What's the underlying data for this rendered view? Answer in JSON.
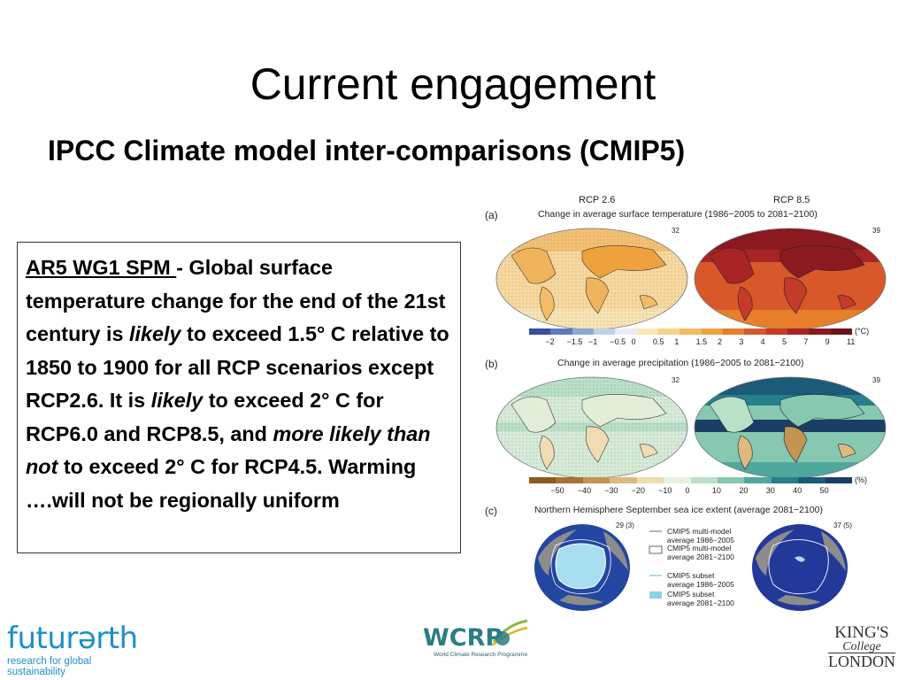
{
  "slide": {
    "title": "Current engagement",
    "subtitle": "IPCC Climate model inter-comparisons (CMIP5)"
  },
  "textbox": {
    "part1_underlined": "AR5 WG1 SPM ",
    "part2": "- Global surface temperature change for the end of the 21st century is ",
    "likely1": "likely",
    "part3": " to exceed 1.5° C relative to 1850 to 1900 for all RCP scenarios except RCP2.6. It is ",
    "likely2": "likely",
    "part4": " to exceed 2° C for RCP6.0 and RCP8.5, and ",
    "more_likely": "more likely than not",
    "part5": " to exceed 2° C for RCP4.5. Warming ….will not be regionally uniform"
  },
  "figure": {
    "col_left": "RCP 2.6",
    "col_right": "RCP 8.5",
    "panel_a": {
      "letter": "(a)",
      "title": "Change in average surface temperature (1986−2005 to 2081−2100)",
      "n_left": "32",
      "n_right": "39",
      "ticks": [
        "−2",
        "−1.5",
        "−1",
        "−0.5",
        "0",
        "0.5",
        "1",
        "1.5",
        "2",
        "3",
        "4",
        "5",
        "7",
        "9",
        "11"
      ],
      "unit": "(°C)",
      "colors": [
        "#3a4fa0",
        "#5b7cc0",
        "#89aad6",
        "#bcd3ea",
        "#e6eef6",
        "#fbe7b9",
        "#f7d389",
        "#f3bb5d",
        "#eea13d",
        "#e67e2c",
        "#d9582a",
        "#c53a28",
        "#a82424",
        "#8a1a20",
        "#6e1219"
      ]
    },
    "panel_b": {
      "letter": "(b)",
      "title": "Change in average precipitation (1986−2005 to 2081−2100)",
      "n_left": "32",
      "n_right": "39",
      "ticks": [
        "−50",
        "−40",
        "−30",
        "−20",
        "−10",
        "0",
        "10",
        "20",
        "30",
        "40",
        "50"
      ],
      "unit": "(%)",
      "colors": [
        "#8c5a1c",
        "#a87232",
        "#c39552",
        "#dcba80",
        "#efdcb2",
        "#e7f2e0",
        "#b9e0c8",
        "#86c8b0",
        "#4fa89c",
        "#267f8c",
        "#1c5a7a",
        "#1b3e66"
      ]
    },
    "panel_c": {
      "letter": "(c)",
      "title": "Northern Hemisphere September sea ice extent (average 2081−2100)",
      "n_left": "29 (3)",
      "n_right": "37 (5)",
      "legend": [
        {
          "line1": "CMIP5 multi-model",
          "line2": "average 1986−2005",
          "kind": "line",
          "color": "#666666"
        },
        {
          "line1": "CMIP5 multi-model",
          "line2": "average 2081−2100",
          "kind": "box",
          "color": "#ffffff"
        },
        {
          "line1": "CMIP5 subset",
          "line2": "average 1986−2005",
          "kind": "line",
          "color": "#8fd0e8"
        },
        {
          "line1": "CMIP5 subset",
          "line2": "average 2081−2100",
          "kind": "box",
          "color": "#8fd0e8"
        }
      ]
    }
  },
  "logos": {
    "futureearth_word": "futurərth",
    "futureearth_tag": "research for global sustainability",
    "wcrp_word": "WCRP",
    "wcrp_tag": "World Climate Research Programme",
    "kcl_line1": "KING'S",
    "kcl_line2": "College",
    "kcl_line3": "LONDON"
  }
}
